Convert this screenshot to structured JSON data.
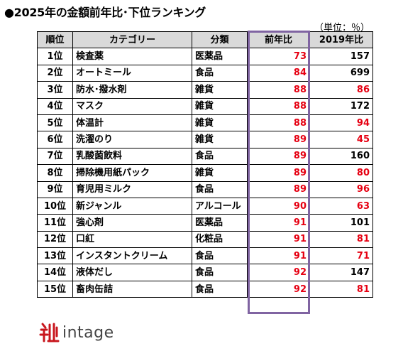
{
  "title": "●2025年の金額前年比･下位ランキング",
  "unit_note": "（単位：％）",
  "colors": {
    "header_bg": "#d9d9d9",
    "red_value": "#e60012",
    "highlight_border": "#8064a2",
    "logo_red": "#c8161d"
  },
  "chart_data": {
    "type": "table",
    "title": "●2025年の金額前年比･下位ランキング",
    "unit": "（単位：％）",
    "columns": [
      "順位",
      "カテゴリー",
      "分類",
      "前年比",
      "2019年比"
    ],
    "rows": [
      {
        "rank": "1位",
        "category": "検査薬",
        "type": "医薬品",
        "yoy": 73,
        "vs2019": 157
      },
      {
        "rank": "2位",
        "category": "オートミール",
        "type": "食品",
        "yoy": 84,
        "vs2019": 699
      },
      {
        "rank": "3位",
        "category": "防水･撥水剤",
        "type": "雑貨",
        "yoy": 88,
        "vs2019": 86
      },
      {
        "rank": "4位",
        "category": "マスク",
        "type": "雑貨",
        "yoy": 88,
        "vs2019": 172
      },
      {
        "rank": "5位",
        "category": "体温計",
        "type": "雑貨",
        "yoy": 88,
        "vs2019": 94
      },
      {
        "rank": "6位",
        "category": "洗濯のり",
        "type": "雑貨",
        "yoy": 89,
        "vs2019": 45
      },
      {
        "rank": "7位",
        "category": "乳酸菌飲料",
        "type": "食品",
        "yoy": 89,
        "vs2019": 160
      },
      {
        "rank": "8位",
        "category": "掃除機用紙パック",
        "type": "雑貨",
        "yoy": 89,
        "vs2019": 80
      },
      {
        "rank": "9位",
        "category": "育児用ミルク",
        "type": "食品",
        "yoy": 89,
        "vs2019": 96
      },
      {
        "rank": "10位",
        "category": "新ジャンル",
        "type": "アルコール",
        "yoy": 90,
        "vs2019": 63
      },
      {
        "rank": "11位",
        "category": "強心剤",
        "type": "医薬品",
        "yoy": 91,
        "vs2019": 101
      },
      {
        "rank": "12位",
        "category": "口紅",
        "type": "化粧品",
        "yoy": 91,
        "vs2019": 81
      },
      {
        "rank": "13位",
        "category": "インスタントクリーム",
        "type": "食品",
        "yoy": 91,
        "vs2019": 71
      },
      {
        "rank": "14位",
        "category": "液体だし",
        "type": "食品",
        "yoy": 92,
        "vs2019": 147
      },
      {
        "rank": "15位",
        "category": "畜肉缶詰",
        "type": "食品",
        "yoy": 92,
        "vs2019": 81
      }
    ]
  },
  "logo": {
    "text": "intage",
    "icon": "intage-logo-icon"
  }
}
